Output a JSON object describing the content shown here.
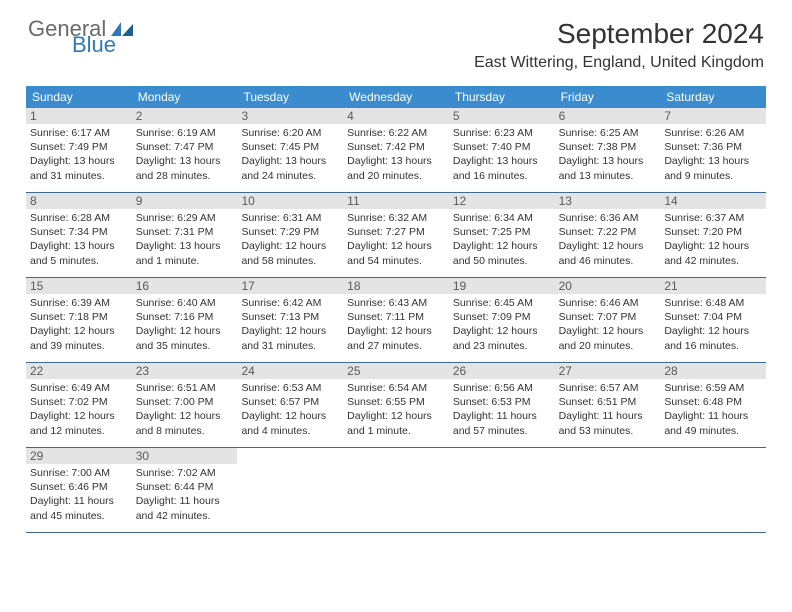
{
  "brand": {
    "part1": "General",
    "part2": "Blue"
  },
  "colors": {
    "header_bg": "#3a8ccf",
    "row_divider": "#3a6a95",
    "daynum_bg": "#e4e4e4",
    "text": "#333333",
    "brand_gray": "#6a6a6a",
    "brand_blue": "#2f79bd"
  },
  "title": "September 2024",
  "location": "East Wittering, England, United Kingdom",
  "weekdays": [
    "Sunday",
    "Monday",
    "Tuesday",
    "Wednesday",
    "Thursday",
    "Friday",
    "Saturday"
  ],
  "weeks": [
    [
      {
        "n": "1",
        "sunrise": "Sunrise: 6:17 AM",
        "sunset": "Sunset: 7:49 PM",
        "day1": "Daylight: 13 hours",
        "day2": "and 31 minutes."
      },
      {
        "n": "2",
        "sunrise": "Sunrise: 6:19 AM",
        "sunset": "Sunset: 7:47 PM",
        "day1": "Daylight: 13 hours",
        "day2": "and 28 minutes."
      },
      {
        "n": "3",
        "sunrise": "Sunrise: 6:20 AM",
        "sunset": "Sunset: 7:45 PM",
        "day1": "Daylight: 13 hours",
        "day2": "and 24 minutes."
      },
      {
        "n": "4",
        "sunrise": "Sunrise: 6:22 AM",
        "sunset": "Sunset: 7:42 PM",
        "day1": "Daylight: 13 hours",
        "day2": "and 20 minutes."
      },
      {
        "n": "5",
        "sunrise": "Sunrise: 6:23 AM",
        "sunset": "Sunset: 7:40 PM",
        "day1": "Daylight: 13 hours",
        "day2": "and 16 minutes."
      },
      {
        "n": "6",
        "sunrise": "Sunrise: 6:25 AM",
        "sunset": "Sunset: 7:38 PM",
        "day1": "Daylight: 13 hours",
        "day2": "and 13 minutes."
      },
      {
        "n": "7",
        "sunrise": "Sunrise: 6:26 AM",
        "sunset": "Sunset: 7:36 PM",
        "day1": "Daylight: 13 hours",
        "day2": "and 9 minutes."
      }
    ],
    [
      {
        "n": "8",
        "sunrise": "Sunrise: 6:28 AM",
        "sunset": "Sunset: 7:34 PM",
        "day1": "Daylight: 13 hours",
        "day2": "and 5 minutes."
      },
      {
        "n": "9",
        "sunrise": "Sunrise: 6:29 AM",
        "sunset": "Sunset: 7:31 PM",
        "day1": "Daylight: 13 hours",
        "day2": "and 1 minute."
      },
      {
        "n": "10",
        "sunrise": "Sunrise: 6:31 AM",
        "sunset": "Sunset: 7:29 PM",
        "day1": "Daylight: 12 hours",
        "day2": "and 58 minutes."
      },
      {
        "n": "11",
        "sunrise": "Sunrise: 6:32 AM",
        "sunset": "Sunset: 7:27 PM",
        "day1": "Daylight: 12 hours",
        "day2": "and 54 minutes."
      },
      {
        "n": "12",
        "sunrise": "Sunrise: 6:34 AM",
        "sunset": "Sunset: 7:25 PM",
        "day1": "Daylight: 12 hours",
        "day2": "and 50 minutes."
      },
      {
        "n": "13",
        "sunrise": "Sunrise: 6:36 AM",
        "sunset": "Sunset: 7:22 PM",
        "day1": "Daylight: 12 hours",
        "day2": "and 46 minutes."
      },
      {
        "n": "14",
        "sunrise": "Sunrise: 6:37 AM",
        "sunset": "Sunset: 7:20 PM",
        "day1": "Daylight: 12 hours",
        "day2": "and 42 minutes."
      }
    ],
    [
      {
        "n": "15",
        "sunrise": "Sunrise: 6:39 AM",
        "sunset": "Sunset: 7:18 PM",
        "day1": "Daylight: 12 hours",
        "day2": "and 39 minutes."
      },
      {
        "n": "16",
        "sunrise": "Sunrise: 6:40 AM",
        "sunset": "Sunset: 7:16 PM",
        "day1": "Daylight: 12 hours",
        "day2": "and 35 minutes."
      },
      {
        "n": "17",
        "sunrise": "Sunrise: 6:42 AM",
        "sunset": "Sunset: 7:13 PM",
        "day1": "Daylight: 12 hours",
        "day2": "and 31 minutes."
      },
      {
        "n": "18",
        "sunrise": "Sunrise: 6:43 AM",
        "sunset": "Sunset: 7:11 PM",
        "day1": "Daylight: 12 hours",
        "day2": "and 27 minutes."
      },
      {
        "n": "19",
        "sunrise": "Sunrise: 6:45 AM",
        "sunset": "Sunset: 7:09 PM",
        "day1": "Daylight: 12 hours",
        "day2": "and 23 minutes."
      },
      {
        "n": "20",
        "sunrise": "Sunrise: 6:46 AM",
        "sunset": "Sunset: 7:07 PM",
        "day1": "Daylight: 12 hours",
        "day2": "and 20 minutes."
      },
      {
        "n": "21",
        "sunrise": "Sunrise: 6:48 AM",
        "sunset": "Sunset: 7:04 PM",
        "day1": "Daylight: 12 hours",
        "day2": "and 16 minutes."
      }
    ],
    [
      {
        "n": "22",
        "sunrise": "Sunrise: 6:49 AM",
        "sunset": "Sunset: 7:02 PM",
        "day1": "Daylight: 12 hours",
        "day2": "and 12 minutes."
      },
      {
        "n": "23",
        "sunrise": "Sunrise: 6:51 AM",
        "sunset": "Sunset: 7:00 PM",
        "day1": "Daylight: 12 hours",
        "day2": "and 8 minutes."
      },
      {
        "n": "24",
        "sunrise": "Sunrise: 6:53 AM",
        "sunset": "Sunset: 6:57 PM",
        "day1": "Daylight: 12 hours",
        "day2": "and 4 minutes."
      },
      {
        "n": "25",
        "sunrise": "Sunrise: 6:54 AM",
        "sunset": "Sunset: 6:55 PM",
        "day1": "Daylight: 12 hours",
        "day2": "and 1 minute."
      },
      {
        "n": "26",
        "sunrise": "Sunrise: 6:56 AM",
        "sunset": "Sunset: 6:53 PM",
        "day1": "Daylight: 11 hours",
        "day2": "and 57 minutes."
      },
      {
        "n": "27",
        "sunrise": "Sunrise: 6:57 AM",
        "sunset": "Sunset: 6:51 PM",
        "day1": "Daylight: 11 hours",
        "day2": "and 53 minutes."
      },
      {
        "n": "28",
        "sunrise": "Sunrise: 6:59 AM",
        "sunset": "Sunset: 6:48 PM",
        "day1": "Daylight: 11 hours",
        "day2": "and 49 minutes."
      }
    ],
    [
      {
        "n": "29",
        "sunrise": "Sunrise: 7:00 AM",
        "sunset": "Sunset: 6:46 PM",
        "day1": "Daylight: 11 hours",
        "day2": "and 45 minutes."
      },
      {
        "n": "30",
        "sunrise": "Sunrise: 7:02 AM",
        "sunset": "Sunset: 6:44 PM",
        "day1": "Daylight: 11 hours",
        "day2": "and 42 minutes."
      },
      null,
      null,
      null,
      null,
      null
    ]
  ]
}
